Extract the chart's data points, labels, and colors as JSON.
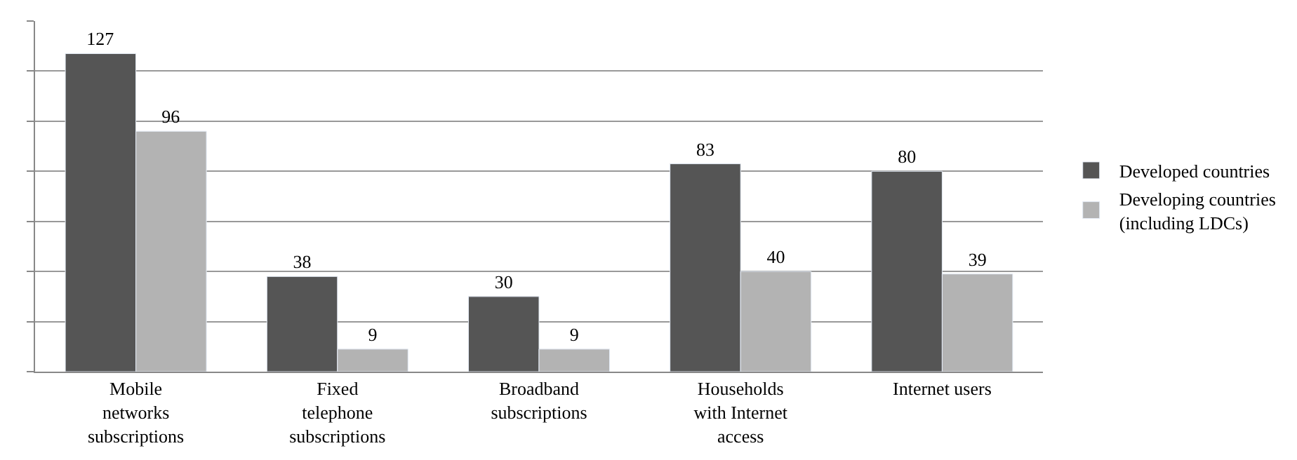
{
  "chart_data": {
    "type": "bar",
    "categories": [
      "Mobile networks subscriptions",
      "Fixed telephone subscriptions",
      "Broadband subscriptions",
      "Households with Internet access",
      "Internet users"
    ],
    "series": [
      {
        "name": "Developed countries",
        "color": "#555555",
        "values": [
          127,
          38,
          30,
          83,
          80
        ]
      },
      {
        "name": "Developing countries (including LDCs)",
        "color": "#b3b3b3",
        "values": [
          96,
          9,
          9,
          40,
          39
        ]
      }
    ],
    "ylim": [
      0,
      140
    ],
    "yticks": [
      {
        "value": 0,
        "label": null
      },
      {
        "value": 20,
        "label": null
      },
      {
        "value": 40,
        "label": null
      },
      {
        "value": 60,
        "label": null
      },
      {
        "value": 80,
        "label": null
      },
      {
        "value": 100,
        "label": null
      },
      {
        "value": 120,
        "label": null
      },
      {
        "value": 140,
        "label": null
      }
    ],
    "tick_labels": "x",
    "grid": "y",
    "legend": "right",
    "data_labels": true
  }
}
